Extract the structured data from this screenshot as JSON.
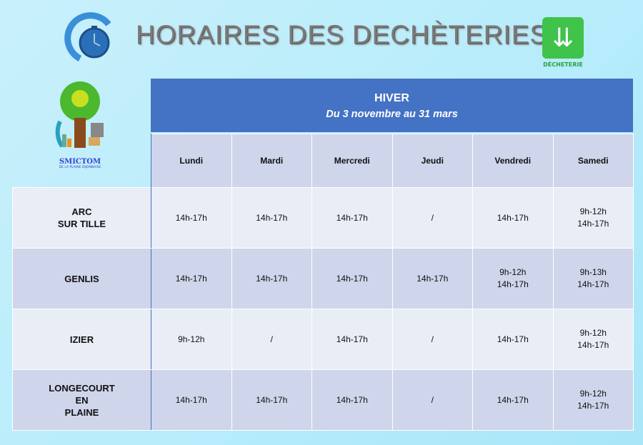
{
  "title": "HORAIRES DES DECHÈTERIES",
  "logos": {
    "clock": "HORAIRES D'OUVERTURE",
    "smictom": "SMICTOM",
    "smictom_sub": "DE LA PLAINE DIJONNAISE",
    "decheterie": "DÉCHETERIE"
  },
  "season": {
    "name": "HIVER",
    "dates": "Du 3 novembre au 31 mars"
  },
  "days": [
    "Lundi",
    "Mardi",
    "Mercredi",
    "Jeudi",
    "Vendredi",
    "Samedi"
  ],
  "rows": [
    {
      "site": "ARC\nSUR TILLE",
      "hours": [
        "14h-17h",
        "14h-17h",
        "14h-17h",
        "/",
        "14h-17h",
        "9h-12h\n14h-17h"
      ]
    },
    {
      "site": "GENLIS",
      "hours": [
        "14h-17h",
        "14h-17h",
        "14h-17h",
        "14h-17h",
        "9h-12h\n14h-17h",
        "9h-13h\n14h-17h"
      ]
    },
    {
      "site": "IZIER",
      "hours": [
        "9h-12h",
        "/",
        "14h-17h",
        "/",
        "14h-17h",
        "9h-12h\n14h-17h"
      ]
    },
    {
      "site": "LONGECOURT\nEN\nPLAINE",
      "hours": [
        "14h-17h",
        "14h-17h",
        "14h-17h",
        "/",
        "14h-17h",
        "9h-12h\n14h-17h"
      ]
    }
  ],
  "colors": {
    "header": "#4472c4",
    "row_light": "#e9edf6",
    "row_dark": "#cfd5ea"
  }
}
